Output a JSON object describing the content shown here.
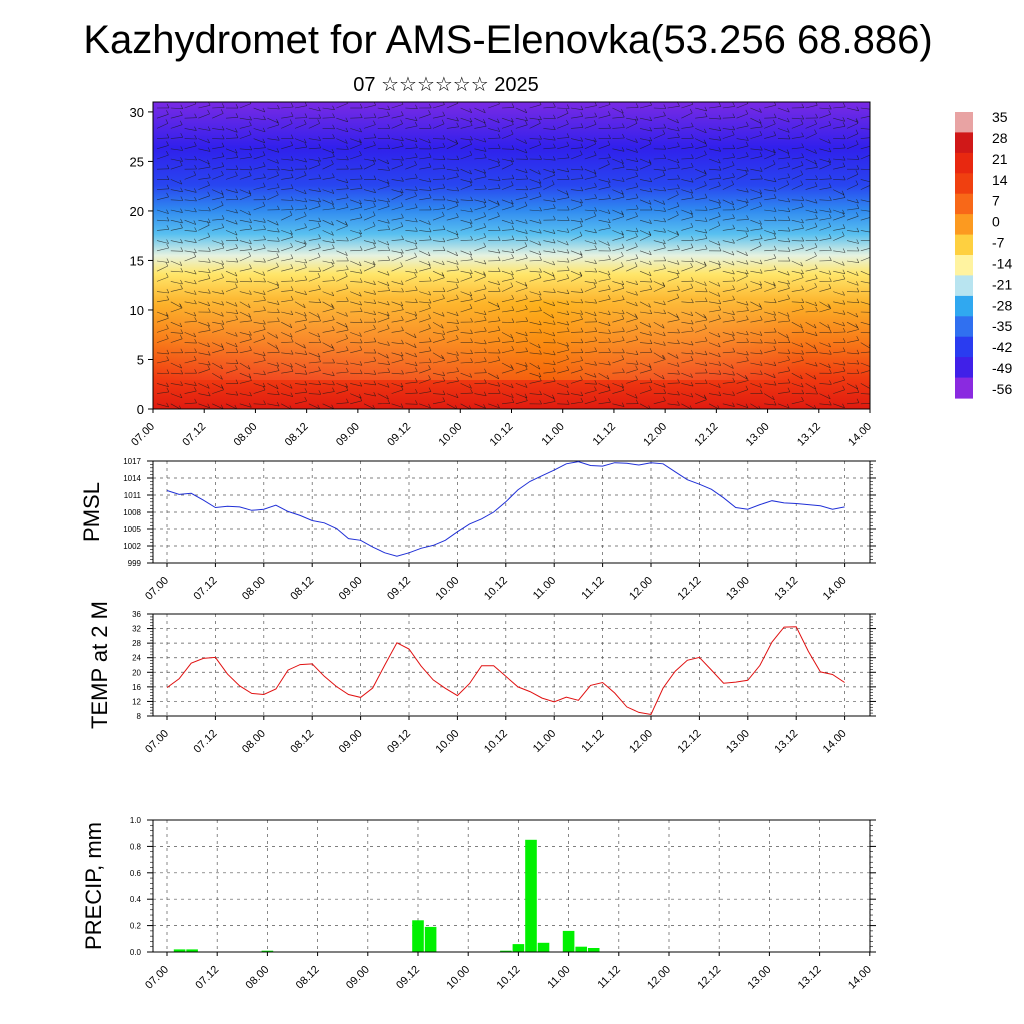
{
  "header": {
    "title": "Kazhydromet for AMS-Elenovka(53.256 68.886)",
    "subtitle": "07 ☆☆☆☆☆☆ 2025"
  },
  "colors": {
    "pmsl_line": "#1f2fd6",
    "temp_line": "#e01010",
    "precip_bar": "#00f000",
    "grid": "#555555"
  },
  "chart_data": [
    {
      "type": "heatmap",
      "name": "vertical-temperature-wind",
      "x_tick_labels": [
        "07.00",
        "07.12",
        "08.00",
        "08.12",
        "09.00",
        "09.12",
        "10.00",
        "10.12",
        "11.00",
        "11.12",
        "12.00",
        "12.12",
        "13.00",
        "13.12",
        "14.00"
      ],
      "y_tick_labels": [
        "0",
        "5",
        "10",
        "15",
        "20",
        "25",
        "30"
      ],
      "ylim": [
        0,
        31
      ],
      "colorbar": {
        "labels": [
          "35",
          "28",
          "21",
          "14",
          "7",
          "0",
          "-7",
          "-14",
          "-21",
          "-28",
          "-35",
          "-42",
          "-49",
          "-56"
        ],
        "colors": [
          "#e8a3a3",
          "#d01818",
          "#e82810",
          "#f04010",
          "#f86818",
          "#fc9a20",
          "#fed040",
          "#fff3a0",
          "#b8e4f0",
          "#30a8f0",
          "#3070f0",
          "#2a3cf0",
          "#4020e8",
          "#8a2ae0"
        ]
      },
      "wind_barbs": true
    },
    {
      "type": "line",
      "name": "pmsl",
      "ylabel": "PMSL",
      "ylim": [
        999,
        1017
      ],
      "y_tick_labels": [
        "1017",
        "1014",
        "1011",
        "1008",
        "1005",
        "1002",
        "999"
      ],
      "x_tick_labels": [
        "07.00",
        "07.12",
        "08.00",
        "08.12",
        "09.00",
        "09.12",
        "10.00",
        "10.12",
        "11.00",
        "11.12",
        "12.00",
        "12.12",
        "13.00",
        "13.12",
        "14.00"
      ],
      "series": [
        {
          "x": [
            0,
            3,
            6,
            9,
            12,
            15,
            18,
            21,
            24,
            27,
            30,
            33,
            36,
            39,
            42,
            45,
            48,
            51,
            54,
            57,
            60,
            63,
            66,
            69,
            72,
            75,
            78,
            81,
            84,
            87,
            90,
            93,
            96,
            99,
            102,
            105,
            108,
            111,
            114,
            117,
            120,
            123,
            126,
            129,
            132,
            135,
            138,
            141,
            144,
            147,
            150,
            153,
            156,
            159,
            162,
            165,
            168
          ],
          "values": [
            1011.8,
            1011.1,
            1011.3,
            1010.1,
            1008.8,
            1009.0,
            1008.9,
            1008.3,
            1008.5,
            1009.2,
            1008.1,
            1007.4,
            1006.5,
            1006.1,
            1005.1,
            1003.3,
            1003.0,
            1001.8,
            1000.8,
            1000.2,
            1000.8,
            1001.6,
            1002.1,
            1003.0,
            1004.5,
            1005.9,
            1006.8,
            1008.0,
            1009.8,
            1011.9,
            1013.4,
            1014.4,
            1015.4,
            1016.5,
            1016.9,
            1016.2,
            1016.1,
            1016.7,
            1016.6,
            1016.3,
            1016.7,
            1016.5,
            1015.1,
            1013.7,
            1012.9,
            1012.0,
            1010.5,
            1008.8,
            1008.5,
            1009.3,
            1010.0,
            1009.6,
            1009.5,
            1009.3,
            1009.1,
            1008.5,
            1008.9
          ]
        }
      ]
    },
    {
      "type": "line",
      "name": "temp-2m",
      "ylabel": "TEMP at 2 M",
      "ylim": [
        8,
        36
      ],
      "y_tick_labels": [
        "36",
        "32",
        "28",
        "24",
        "20",
        "16",
        "12",
        "8"
      ],
      "x_tick_labels": [
        "07.00",
        "07.12",
        "08.00",
        "08.12",
        "09.00",
        "09.12",
        "10.00",
        "10.12",
        "11.00",
        "11.12",
        "12.00",
        "12.12",
        "13.00",
        "13.12",
        "14.00"
      ],
      "series": [
        {
          "x": [
            0,
            3,
            6,
            9,
            12,
            15,
            18,
            21,
            24,
            27,
            30,
            33,
            36,
            39,
            42,
            45,
            48,
            51,
            54,
            57,
            60,
            63,
            66,
            69,
            72,
            75,
            78,
            81,
            84,
            87,
            90,
            93,
            96,
            99,
            102,
            105,
            108,
            111,
            114,
            117,
            120,
            123,
            126,
            129,
            132,
            135,
            138,
            141,
            144,
            147,
            150,
            153,
            156,
            159,
            162,
            165,
            168
          ],
          "values": [
            15.8,
            18.2,
            22.5,
            23.8,
            24.1,
            19.5,
            16.3,
            14.2,
            13.9,
            15.4,
            20.6,
            22.1,
            22.3,
            18.9,
            16.1,
            13.9,
            13.1,
            15.7,
            22.0,
            28.1,
            26.4,
            21.7,
            17.9,
            15.6,
            13.6,
            16.9,
            21.8,
            21.8,
            18.9,
            16.0,
            14.7,
            12.9,
            11.9,
            13.2,
            12.3,
            16.4,
            17.2,
            14.3,
            10.5,
            9.0,
            8.4,
            15.7,
            20.3,
            23.3,
            24.1,
            20.6,
            17.0,
            17.3,
            17.8,
            21.9,
            28.3,
            32.4,
            32.5,
            25.8,
            20.1,
            19.4,
            17.2
          ]
        }
      ]
    },
    {
      "type": "bar",
      "name": "precip",
      "ylabel": "PRECIP, mm",
      "ylim": [
        0,
        1.0
      ],
      "y_tick_labels": [
        "1.0",
        "0.8",
        "0.6",
        "0.4",
        "0.2",
        "0.0"
      ],
      "x_tick_labels": [
        "07.00",
        "07.12",
        "08.00",
        "08.12",
        "09.00",
        "09.12",
        "10.00",
        "10.12",
        "11.00",
        "11.12",
        "12.00",
        "12.12",
        "13.00",
        "13.12",
        "14.00"
      ],
      "bars": [
        {
          "x": 3,
          "value": 0.02
        },
        {
          "x": 6,
          "value": 0.02
        },
        {
          "x": 24,
          "value": 0.01
        },
        {
          "x": 60,
          "value": 0.24
        },
        {
          "x": 63,
          "value": 0.19
        },
        {
          "x": 81,
          "value": 0.01
        },
        {
          "x": 84,
          "value": 0.06
        },
        {
          "x": 87,
          "value": 0.85
        },
        {
          "x": 90,
          "value": 0.07
        },
        {
          "x": 96,
          "value": 0.16
        },
        {
          "x": 99,
          "value": 0.04
        },
        {
          "x": 102,
          "value": 0.03
        }
      ]
    }
  ]
}
